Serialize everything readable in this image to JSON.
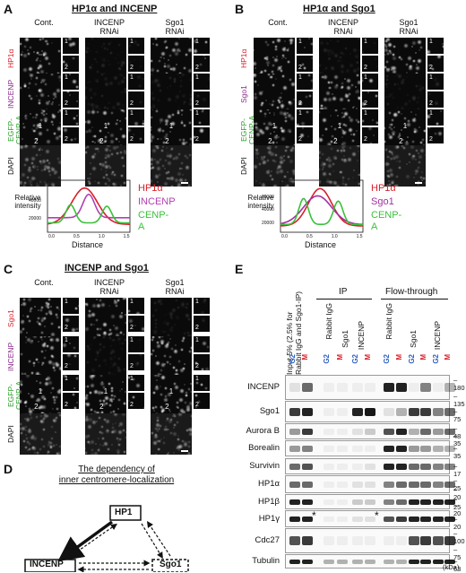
{
  "panelA": {
    "label": "A",
    "title": "HP1α and INCENP",
    "columns": [
      "Cont.",
      "INCENP\nRNAi",
      "Sgo1\nRNAi"
    ],
    "rows": [
      "HP1α",
      "INCENP",
      "EGFP-\nCENP-A",
      "DAPI"
    ],
    "rowColors": [
      "#d8202a",
      "#8a2a8a",
      "#2aa02a",
      "#111111"
    ],
    "graph": {
      "ylabel": "Relative\nintensity",
      "xlabel": "Distance",
      "yticks": [
        "60000",
        "40000",
        "20000"
      ],
      "xticks": [
        "0.0",
        "0.5",
        "1.0",
        "1.5"
      ],
      "legend": [
        "HP1α",
        "INCENP",
        "CENP-A"
      ]
    }
  },
  "panelB": {
    "label": "B",
    "title": "HP1α and Sgo1",
    "columns": [
      "Cont.",
      "INCENP\nRNAi",
      "Sgo1\nRNAi"
    ],
    "rows": [
      "HP1α",
      "Sgo1",
      "EGFP-\nCENP-A",
      "DAPI"
    ],
    "graph": {
      "ylabel": "Relative\nintensity",
      "xlabel": "Distance",
      "yticks": [
        "80000",
        "60000",
        "40000",
        "20000"
      ],
      "xticks": [
        "0.0",
        "0.5",
        "1.0",
        "1.5"
      ],
      "legend": [
        "HP1α",
        "Sgo1",
        "CENP-A"
      ]
    }
  },
  "panelC": {
    "label": "C",
    "title": "INCENP and Sgo1",
    "columns": [
      "Cont.",
      "INCENP\nRNAi",
      "Sgo1\nRNAi"
    ],
    "rows": [
      "Sgo1",
      "INCENP",
      "EGFP-\nCENP-A",
      "DAPI"
    ]
  },
  "panelD": {
    "label": "D",
    "title1": "The dependency of",
    "title2": "inner centromere-localization",
    "nodes": [
      "HP1",
      "INCENP",
      "Sgo1"
    ]
  },
  "panelE": {
    "label": "E",
    "inputLabel": "Input 5% (2.5% for\nRabbit IgG and Sgo1-IP)",
    "ipHeader": "IP",
    "ftHeader": "Flow-through",
    "ipLanes": [
      "Rabbit IgG",
      "Sgo1",
      "INCENP"
    ],
    "ftLanes": [
      "Rabbit IgG",
      "Sgo1",
      "INCENP"
    ],
    "phase": [
      "G2",
      "M"
    ],
    "blots": [
      "INCENP",
      "Sgo1",
      "Aurora B",
      "Borealin",
      "Survivin",
      "HP1α",
      "HP1β",
      "HP1γ",
      "Cdc27",
      "Tubulin"
    ],
    "mw": [
      [
        "180",
        "135"
      ],
      [
        "75"
      ],
      [
        "48",
        "35"
      ],
      [
        "35"
      ],
      [
        "17"
      ],
      [
        "25",
        "20"
      ],
      [
        "25",
        "20"
      ],
      [
        "20"
      ],
      [
        "100",
        "75"
      ],
      [
        "63"
      ]
    ],
    "unit": "(kDa)",
    "asterisk": "*"
  }
}
